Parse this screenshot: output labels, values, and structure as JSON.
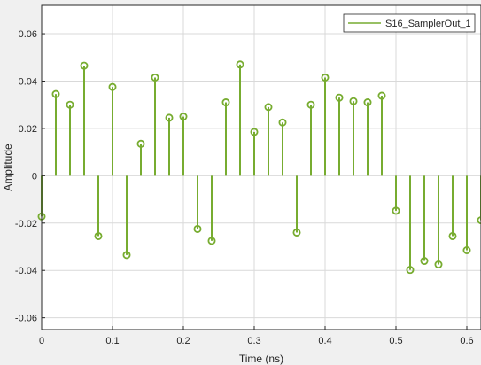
{
  "colors": {
    "figure_bg": "#f0f0f0",
    "axes_bg": "#ffffff",
    "grid": "#d9d9d9",
    "axis": "#262626",
    "stem": "#77ac30"
  },
  "legend": {
    "entries": [
      "S16_SamplerOut_1"
    ],
    "placement": "top-right"
  },
  "chart_data": {
    "type": "stem",
    "xlabel": "Time (ns)",
    "ylabel": "Amplitude",
    "xlim": [
      0,
      0.62
    ],
    "ylim": [
      -0.065,
      0.072
    ],
    "xticks": [
      0,
      0.1,
      0.2,
      0.3,
      0.4,
      0.5,
      0.6
    ],
    "xtick_labels": [
      "0",
      "0.1",
      "0.2",
      "0.3",
      "0.4",
      "0.5",
      "0.6"
    ],
    "yticks": [
      -0.06,
      -0.04,
      -0.02,
      0,
      0.02,
      0.04,
      0.06
    ],
    "ytick_labels": [
      "-0.06",
      "-0.04",
      "-0.02",
      "0",
      "0.02",
      "0.04",
      "0.06"
    ],
    "grid": true,
    "series": [
      {
        "name": "S16_SamplerOut_1",
        "x": [
          0,
          0.02,
          0.04,
          0.06,
          0.08,
          0.1,
          0.12,
          0.14,
          0.16,
          0.18,
          0.2,
          0.22,
          0.24,
          0.26,
          0.28,
          0.3,
          0.32,
          0.34,
          0.36,
          0.38,
          0.4,
          0.42,
          0.44,
          0.46,
          0.48,
          0.5,
          0.52,
          0.54,
          0.56,
          0.58,
          0.6,
          0.62
        ],
        "y": [
          -0.0172,
          0.0345,
          0.03,
          0.0465,
          -0.0255,
          0.0375,
          -0.0335,
          0.0135,
          0.0415,
          0.0245,
          0.025,
          -0.0225,
          -0.0275,
          0.031,
          0.047,
          0.0185,
          0.029,
          0.0225,
          -0.024,
          0.03,
          0.0415,
          0.033,
          0.0315,
          0.031,
          0.0338,
          -0.0148,
          -0.0398,
          -0.036,
          -0.0375,
          -0.0255,
          -0.0315,
          -0.0188
        ]
      }
    ]
  }
}
